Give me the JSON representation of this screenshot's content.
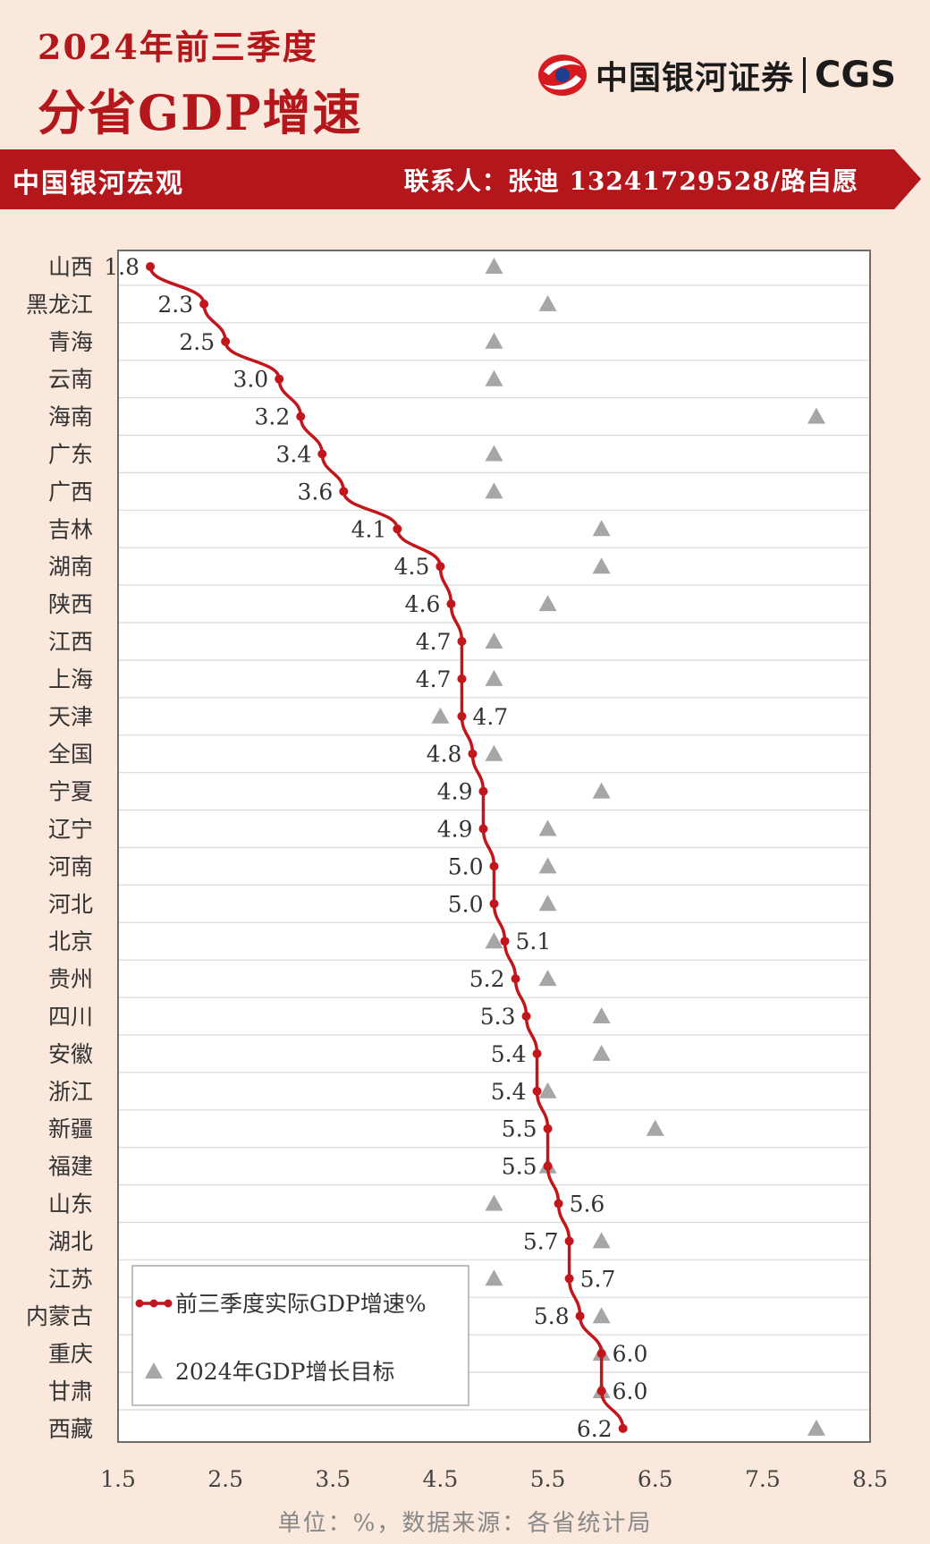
{
  "header": {
    "title_line1": "2024年前三季度",
    "title_line2": "分省GDP增速"
  },
  "brand": {
    "name": "中国银河证券",
    "abbr": "CGS"
  },
  "banner": {
    "left": "中国银河宏观",
    "right": "联系人：张迪 13241729528/路自愿"
  },
  "footer": {
    "note": "单位：%，数据来源：各省统计局"
  },
  "colors": {
    "accent": "#b3161b",
    "line": "#c0161c",
    "target_marker": "#a6a6a6",
    "background": "#fbe8dc"
  },
  "chart_data": {
    "type": "scatter",
    "categories": [
      "山西",
      "黑龙江",
      "青海",
      "云南",
      "海南",
      "广东",
      "广西",
      "吉林",
      "湖南",
      "陕西",
      "江西",
      "上海",
      "天津",
      "全国",
      "宁夏",
      "辽宁",
      "河南",
      "河北",
      "北京",
      "贵州",
      "四川",
      "安徽",
      "浙江",
      "新疆",
      "福建",
      "山东",
      "湖北",
      "江苏",
      "内蒙古",
      "重庆",
      "甘肃",
      "西藏"
    ],
    "series": [
      {
        "name": "前三季度实际GDP增速%",
        "marker": "line-dot",
        "values": [
          1.8,
          2.3,
          2.5,
          3.0,
          3.2,
          3.4,
          3.6,
          4.1,
          4.5,
          4.6,
          4.7,
          4.7,
          4.7,
          4.8,
          4.9,
          4.9,
          5.0,
          5.0,
          5.1,
          5.2,
          5.3,
          5.4,
          5.4,
          5.5,
          5.5,
          5.6,
          5.7,
          5.7,
          5.8,
          6.0,
          6.0,
          6.2
        ],
        "labels": [
          "1.8",
          "2.3",
          "2.5",
          "3.0",
          "3.2",
          "3.4",
          "3.6",
          "4.1",
          "4.5",
          "4.6",
          "4.7",
          "4.7",
          "4.7",
          "4.8",
          "4.9",
          "4.9",
          "5.0",
          "5.0",
          "5.1",
          "5.2",
          "5.3",
          "5.4",
          "5.4",
          "5.5",
          "5.5",
          "5.6",
          "5.7",
          "5.7",
          "5.8",
          "6.0",
          "6.0",
          "6.2"
        ],
        "label_side": [
          "left",
          "left",
          "left",
          "left",
          "left",
          "left",
          "left",
          "left",
          "left",
          "left",
          "left",
          "left",
          "right",
          "left",
          "left",
          "left",
          "left",
          "left",
          "right",
          "left",
          "left",
          "left",
          "left",
          "left",
          "left",
          "right",
          "left",
          "right",
          "left",
          "right",
          "right",
          "left"
        ]
      },
      {
        "name": "2024年GDP增长目标",
        "marker": "triangle",
        "values": [
          5.0,
          5.5,
          5.0,
          5.0,
          8.0,
          5.0,
          5.0,
          6.0,
          6.0,
          5.5,
          5.0,
          5.0,
          4.5,
          5.0,
          6.0,
          5.5,
          5.5,
          5.5,
          5.0,
          5.5,
          6.0,
          6.0,
          5.5,
          6.5,
          5.5,
          5.0,
          6.0,
          5.0,
          6.0,
          6.0,
          6.0,
          8.0
        ]
      }
    ],
    "xlim": [
      1.5,
      8.5
    ],
    "xticks": [
      "1.5",
      "2.5",
      "3.5",
      "4.5",
      "5.5",
      "6.5",
      "7.5",
      "8.5"
    ],
    "grid": "horizontal",
    "legend_position": "bottom-left"
  }
}
